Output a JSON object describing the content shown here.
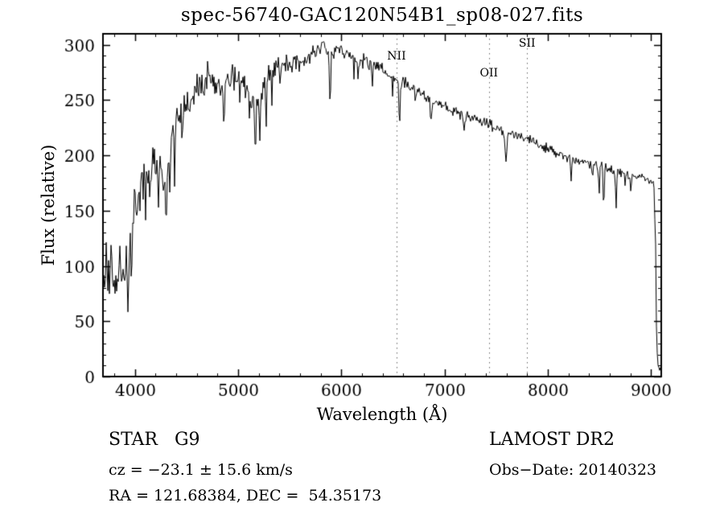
{
  "title": "spec-56740-GAC120N54B1_sp08-027.fits",
  "xlabel": "Wavelength (Å)",
  "ylabel": "Flux (relative)",
  "annotations": {
    "class_label": "STAR   G9",
    "survey": "LAMOST DR2",
    "cz": "cz = −23.1 ± 15.6 km/s",
    "obs_date": "Obs−Date: 20140323",
    "radec": "RA = 121.68384, DEC =  54.35173"
  },
  "chart_data": {
    "type": "line",
    "title": "spec-56740-GAC120N54B1_sp08-027.fits",
    "xlabel": "Wavelength (Å)",
    "ylabel": "Flux (relative)",
    "xlim": [
      3690,
      9100
    ],
    "ylim": [
      0,
      310
    ],
    "xticks": [
      4000,
      5000,
      6000,
      7000,
      8000,
      9000
    ],
    "yticks": [
      0,
      50,
      100,
      150,
      200,
      250,
      300
    ],
    "x_minor_step": 200,
    "y_minor_step": 10,
    "grid": false,
    "line_color": "#000000",
    "marker_line_color": "#666666",
    "lines": [
      {
        "label": "NII",
        "wavelength": 6535,
        "label_top": 62
      },
      {
        "label": "OII",
        "wavelength": 7430,
        "label_top": 83
      },
      {
        "label": "SII",
        "wavelength": 7800,
        "label_top": 46
      }
    ],
    "continuum_anchors": [
      [
        3690,
        95
      ],
      [
        3750,
        85
      ],
      [
        3800,
        90
      ],
      [
        3850,
        95
      ],
      [
        3900,
        110
      ],
      [
        3950,
        118
      ],
      [
        4000,
        155
      ],
      [
        4050,
        175
      ],
      [
        4100,
        185
      ],
      [
        4150,
        190
      ],
      [
        4200,
        195
      ],
      [
        4250,
        188
      ],
      [
        4300,
        182
      ],
      [
        4350,
        215
      ],
      [
        4400,
        230
      ],
      [
        4450,
        240
      ],
      [
        4500,
        246
      ],
      [
        4550,
        255
      ],
      [
        4600,
        262
      ],
      [
        4650,
        268
      ],
      [
        4700,
        272
      ],
      [
        4750,
        268
      ],
      [
        4800,
        265
      ],
      [
        4850,
        258
      ],
      [
        4900,
        272
      ],
      [
        4950,
        275
      ],
      [
        5000,
        272
      ],
      [
        5050,
        262
      ],
      [
        5100,
        258
      ],
      [
        5150,
        246
      ],
      [
        5200,
        242
      ],
      [
        5250,
        268
      ],
      [
        5300,
        275
      ],
      [
        5350,
        278
      ],
      [
        5400,
        280
      ],
      [
        5450,
        282
      ],
      [
        5500,
        285
      ],
      [
        5550,
        283
      ],
      [
        5600,
        282
      ],
      [
        5650,
        287
      ],
      [
        5700,
        290
      ],
      [
        5750,
        293
      ],
      [
        5800,
        298
      ],
      [
        5850,
        300
      ],
      [
        5900,
        294
      ],
      [
        5950,
        296
      ],
      [
        6000,
        296
      ],
      [
        6050,
        293
      ],
      [
        6100,
        290
      ],
      [
        6150,
        288
      ],
      [
        6200,
        286
      ],
      [
        6250,
        283
      ],
      [
        6300,
        281
      ],
      [
        6350,
        279
      ],
      [
        6400,
        277
      ],
      [
        6450,
        274
      ],
      [
        6500,
        272
      ],
      [
        6550,
        269
      ],
      [
        6600,
        267
      ],
      [
        6650,
        264
      ],
      [
        6700,
        261
      ],
      [
        6750,
        258
      ],
      [
        6800,
        255
      ],
      [
        6850,
        251
      ],
      [
        6900,
        247
      ],
      [
        6950,
        245
      ],
      [
        7000,
        243
      ],
      [
        7100,
        239
      ],
      [
        7200,
        236
      ],
      [
        7300,
        233
      ],
      [
        7400,
        229
      ],
      [
        7500,
        226
      ],
      [
        7600,
        220
      ],
      [
        7700,
        219
      ],
      [
        7800,
        215
      ],
      [
        7900,
        211
      ],
      [
        8000,
        207
      ],
      [
        8100,
        202
      ],
      [
        8200,
        198
      ],
      [
        8300,
        196
      ],
      [
        8400,
        193
      ],
      [
        8500,
        191
      ],
      [
        8600,
        187
      ],
      [
        8700,
        184
      ],
      [
        8800,
        182
      ],
      [
        8900,
        180
      ],
      [
        9000,
        177
      ],
      [
        9030,
        172
      ],
      [
        9045,
        120
      ],
      [
        9055,
        30
      ],
      [
        9070,
        8
      ],
      [
        9100,
        6
      ]
    ],
    "noise_anchors": [
      [
        3690,
        26
      ],
      [
        3900,
        24
      ],
      [
        4000,
        16
      ],
      [
        4200,
        12
      ],
      [
        4400,
        10
      ],
      [
        4700,
        9
      ],
      [
        5000,
        8
      ],
      [
        5500,
        7
      ],
      [
        6000,
        5
      ],
      [
        6500,
        4.5
      ],
      [
        7000,
        4
      ],
      [
        7500,
        3.5
      ],
      [
        8000,
        3.5
      ],
      [
        8500,
        3.5
      ],
      [
        9000,
        3
      ],
      [
        9100,
        2
      ]
    ],
    "absorption_lines": [
      [
        3933,
        45,
        6
      ],
      [
        3968,
        38,
        6
      ],
      [
        4045,
        25,
        4
      ],
      [
        4101,
        40,
        5
      ],
      [
        4144,
        25,
        4
      ],
      [
        4226,
        40,
        4
      ],
      [
        4271,
        30,
        4
      ],
      [
        4300,
        45,
        7
      ],
      [
        4340,
        35,
        5
      ],
      [
        4383,
        38,
        4
      ],
      [
        4455,
        22,
        4
      ],
      [
        4531,
        22,
        4
      ],
      [
        4668,
        25,
        4
      ],
      [
        4861,
        40,
        5
      ],
      [
        4920,
        22,
        4
      ],
      [
        4957,
        20,
        4
      ],
      [
        5015,
        22,
        4
      ],
      [
        5110,
        25,
        4
      ],
      [
        5167,
        45,
        5
      ],
      [
        5210,
        38,
        4
      ],
      [
        5270,
        45,
        5
      ],
      [
        5328,
        25,
        4
      ],
      [
        5405,
        20,
        4
      ],
      [
        5890,
        50,
        6
      ],
      [
        6122,
        20,
        4
      ],
      [
        6162,
        18,
        4
      ],
      [
        6300,
        15,
        4
      ],
      [
        6495,
        18,
        4
      ],
      [
        6563,
        42,
        5
      ],
      [
        6717,
        15,
        4
      ],
      [
        6870,
        22,
        7
      ],
      [
        7186,
        15,
        7
      ],
      [
        7594,
        28,
        8
      ],
      [
        8227,
        20,
        5
      ],
      [
        8433,
        15,
        5
      ],
      [
        8498,
        25,
        5
      ],
      [
        8542,
        38,
        5
      ],
      [
        8662,
        34,
        5
      ],
      [
        8750,
        15,
        4
      ],
      [
        8806,
        18,
        4
      ]
    ],
    "seed": 20140323
  }
}
